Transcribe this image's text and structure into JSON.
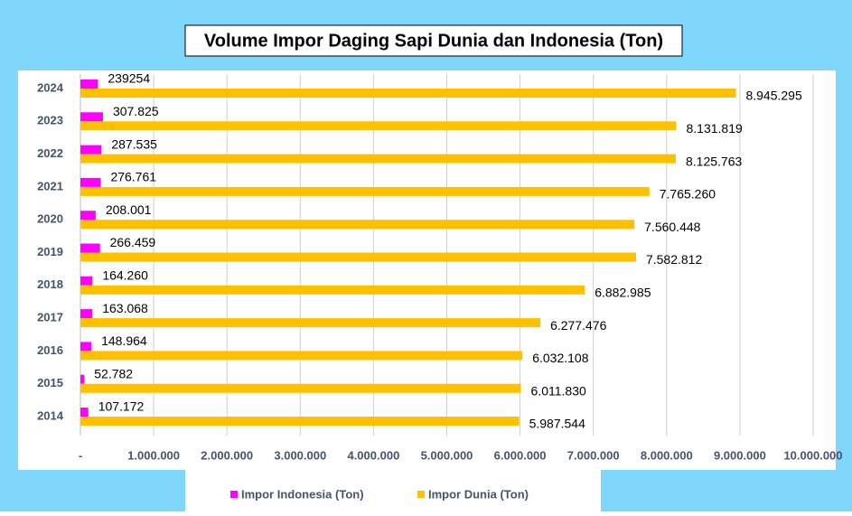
{
  "chart_data": {
    "type": "hbar",
    "title": "Volume Impor Daging Sapi Dunia dan Indonesia (Ton)",
    "categories": [
      "2024",
      "2023",
      "2022",
      "2021",
      "2020",
      "2019",
      "2018",
      "2017",
      "2016",
      "2015",
      "2014"
    ],
    "series": [
      {
        "name": "Impor Indonesia (Ton)",
        "color": "#ff00ff",
        "values": [
          239254,
          307825,
          287535,
          276761,
          208001,
          266459,
          164260,
          163068,
          148964,
          52782,
          107172
        ],
        "value_labels": [
          "239254",
          "307.825",
          "287.535",
          "276.761",
          "208.001",
          "266.459",
          "164.260",
          "163.068",
          "148.964",
          "52.782",
          "107.172"
        ]
      },
      {
        "name": "Impor Dunia (Ton)",
        "color": "#ffc000",
        "values": [
          8945295,
          8131819,
          8125763,
          7765260,
          7560448,
          7582812,
          6882985,
          6277476,
          6032108,
          6011830,
          5987544
        ],
        "value_labels": [
          "8.945.295",
          "8.131.819",
          "8.125.763",
          "7.765.260",
          "7.560.448",
          "7.582.812",
          "6.882.985",
          "6.277.476",
          "6.032.108",
          "6.011.830",
          "5.987.544"
        ]
      }
    ],
    "xlim": [
      0,
      10000000
    ],
    "xticks": [
      {
        "value": 0,
        "label": "-"
      },
      {
        "value": 1000000,
        "label": "1.000.000"
      },
      {
        "value": 2000000,
        "label": "2.000.000"
      },
      {
        "value": 3000000,
        "label": "3.000.000"
      },
      {
        "value": 4000000,
        "label": "4.000.000"
      },
      {
        "value": 5000000,
        "label": "5.000.000"
      },
      {
        "value": 6000000,
        "label": "6.000.000"
      },
      {
        "value": 7000000,
        "label": "7.000.000"
      },
      {
        "value": 8000000,
        "label": "8.000.000"
      },
      {
        "value": 9000000,
        "label": "9.000.000"
      },
      {
        "value": 10000000,
        "label": "10.000.000"
      }
    ],
    "grid": true,
    "legend": "bottom"
  }
}
